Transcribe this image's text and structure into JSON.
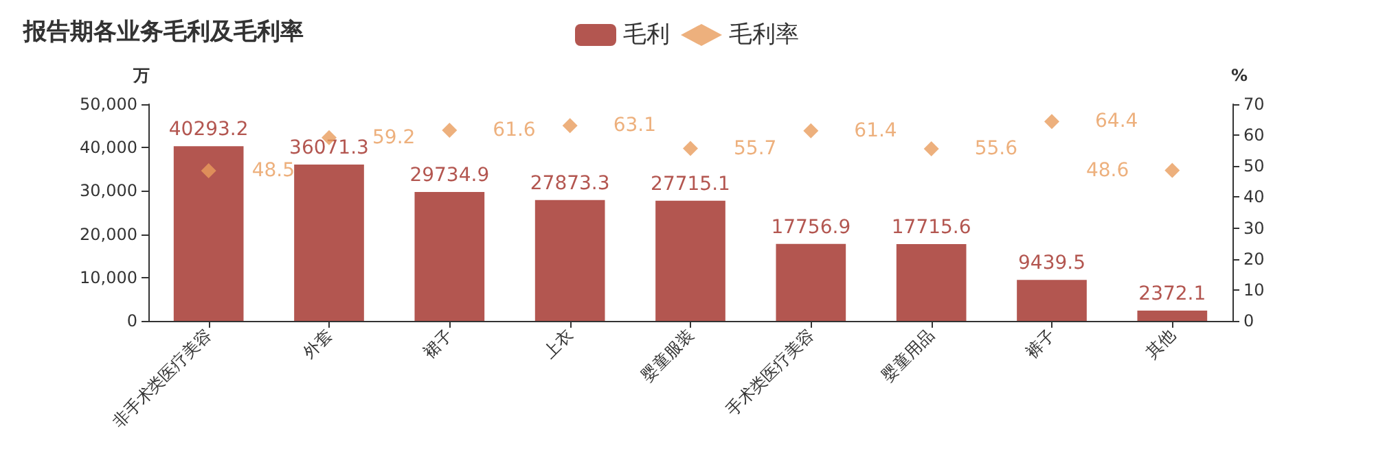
{
  "chart_data": {
    "type": "bar",
    "title": "报告期各业务毛利及毛利率",
    "ylabel": "万",
    "y2label": "%",
    "categories": [
      "非手术类医疗美容",
      "外套",
      "裙子",
      "上衣",
      "婴童服装",
      "手术类医疗美容",
      "婴童用品",
      "裤子",
      "其他"
    ],
    "series": [
      {
        "name": "毛利",
        "color": "#b35650",
        "values": [
          40293.2,
          36071.3,
          29734.9,
          27873.3,
          27715.1,
          17756.9,
          17715.6,
          9439.5,
          2372.1
        ]
      },
      {
        "name": "毛利率",
        "type": "scatter",
        "axis": "y2",
        "color": "#e89c5c",
        "values": [
          48.5,
          59.2,
          61.6,
          63.1,
          55.7,
          61.4,
          55.6,
          64.4,
          48.6
        ]
      }
    ],
    "ylim": [
      0,
      50000
    ],
    "yticks": [
      0,
      {
        "value": 10000,
        "label": "10,000"
      },
      {
        "value": 20000,
        "label": "20,000"
      },
      {
        "value": 30000,
        "label": "30,000"
      },
      {
        "value": 40000,
        "label": "40,000"
      },
      {
        "value": 50000,
        "label": "50,000"
      }
    ],
    "y2lim": [
      0,
      70
    ],
    "y2ticks": [
      0,
      10,
      20,
      30,
      40,
      50,
      60,
      70
    ],
    "data_labels": true,
    "legend": "top",
    "marker": "diamond"
  }
}
